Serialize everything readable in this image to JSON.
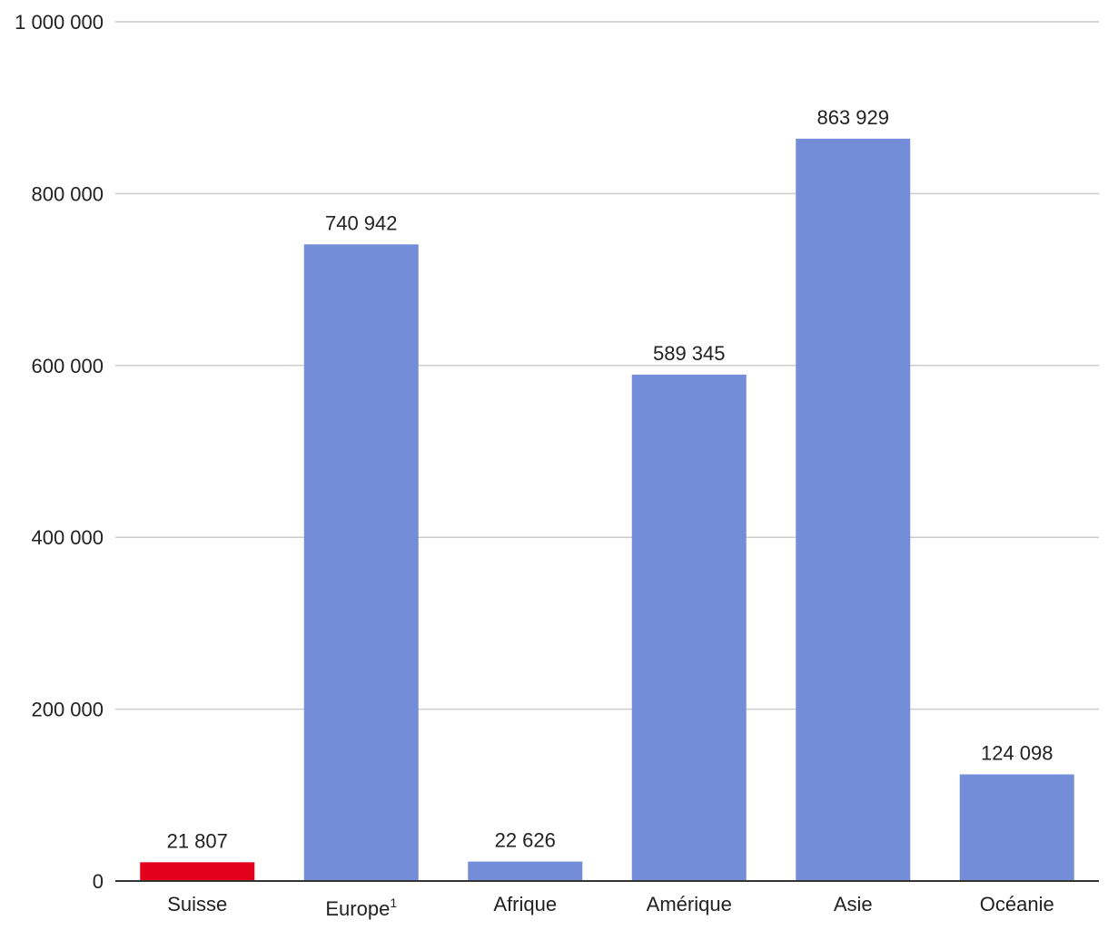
{
  "chart_data": {
    "type": "bar",
    "categories": [
      "Suisse",
      "Europe",
      "Afrique",
      "Amérique",
      "Asie",
      "Océanie"
    ],
    "category_superscripts": [
      "",
      "1",
      "",
      "",
      "",
      ""
    ],
    "values": [
      21807,
      740942,
      22626,
      589345,
      863929,
      124098
    ],
    "value_labels": [
      "21 807",
      "740 942",
      "22 626",
      "589 345",
      "863 929",
      "124 098"
    ],
    "bar_colors": [
      "#e2001a",
      "#748dd8",
      "#748dd8",
      "#748dd8",
      "#748dd8",
      "#748dd8"
    ],
    "title": "",
    "xlabel": "",
    "ylabel": "",
    "ylim": [
      0,
      1000000
    ],
    "yticks": [
      0,
      200000,
      400000,
      600000,
      800000,
      1000000
    ],
    "ytick_labels": [
      "0",
      "200 000",
      "400 000",
      "600 000",
      "800 000",
      "1 000 000"
    ],
    "grid": true,
    "colors": {
      "grid": "#cccccc",
      "axis": "#333333",
      "text": "#222222"
    }
  }
}
